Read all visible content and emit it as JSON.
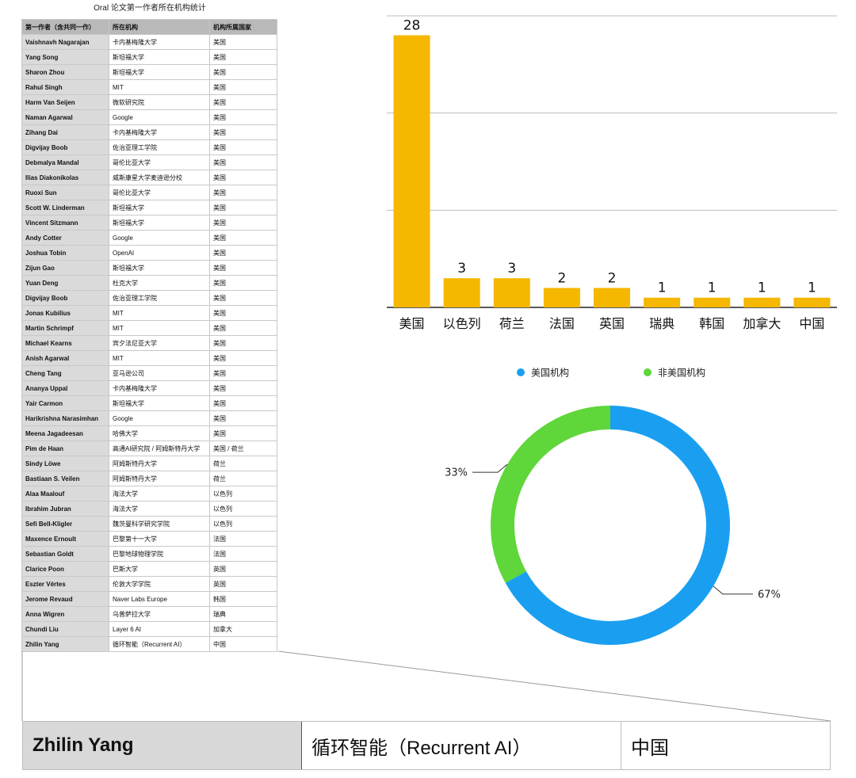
{
  "table": {
    "title": "Oral 论文第一作者所在机构统计",
    "headers": [
      "第一作者（含共同一作）",
      "所在机构",
      "机构所属国家"
    ],
    "rows": [
      [
        "Vaishnavh Nagarajan",
        "卡内基梅隆大学",
        "美国"
      ],
      [
        "Yang Song",
        "斯坦福大学",
        "美国"
      ],
      [
        "Sharon Zhou",
        "斯坦福大学",
        "美国"
      ],
      [
        "Rahul Singh",
        "MIT",
        "美国"
      ],
      [
        "Harm Van Seijen",
        "微软研究院",
        "美国"
      ],
      [
        "Naman Agarwal",
        "Google",
        "美国"
      ],
      [
        "Zihang Dai",
        "卡内基梅隆大学",
        "美国"
      ],
      [
        "Digvijay Boob",
        "佐治亚理工学院",
        "美国"
      ],
      [
        "Debmalya Mandal",
        "哥伦比亚大学",
        "美国"
      ],
      [
        "Ilias Diakonikolas",
        "威斯康星大学麦迪逊分校",
        "美国"
      ],
      [
        "Ruoxi Sun",
        "哥伦比亚大学",
        "美国"
      ],
      [
        "Scott W. Linderman",
        "斯坦福大学",
        "美国"
      ],
      [
        "Vincent Sitzmann",
        "斯坦福大学",
        "美国"
      ],
      [
        "Andy Cotter",
        "Google",
        "美国"
      ],
      [
        "Joshua Tobin",
        "OpenAI",
        "美国"
      ],
      [
        "Zijun Gao",
        "斯坦福大学",
        "美国"
      ],
      [
        "Yuan Deng",
        "杜克大学",
        "美国"
      ],
      [
        "Digvijay Boob",
        "佐治亚理工学院",
        "美国"
      ],
      [
        "Jonas Kubilius",
        "MIT",
        "美国"
      ],
      [
        "Martin Schrimpf",
        "MIT",
        "美国"
      ],
      [
        "Michael Kearns",
        "宾夕法尼亚大学",
        "美国"
      ],
      [
        "Anish Agarwal",
        "MIT",
        "美国"
      ],
      [
        "Cheng Tang",
        "亚马逊公司",
        "美国"
      ],
      [
        "Ananya Uppal",
        "卡内基梅隆大学",
        "美国"
      ],
      [
        "Yair Carmon",
        "斯坦福大学",
        "美国"
      ],
      [
        "Harikrishna Narasimhan",
        "Google",
        "美国"
      ],
      [
        "Meena Jagadeesan",
        "哈佛大学",
        "美国"
      ],
      [
        "Pim de Haan",
        "高通AI研究院 / 阿姆斯特丹大学",
        "美国 / 荷兰"
      ],
      [
        "Sindy Löwe",
        "阿姆斯特丹大学",
        "荷兰"
      ],
      [
        "Bastiaan S. Veilen",
        "阿姆斯特丹大学",
        "荷兰"
      ],
      [
        "Alaa Maalouf",
        "海法大学",
        "以色列"
      ],
      [
        "Ibrahim Jubran",
        "海法大学",
        "以色列"
      ],
      [
        "Sefi Bell-Kligler",
        "魏茨曼科学研究学院",
        "以色列"
      ],
      [
        "Maxence Ernoult",
        "巴黎第十一大学",
        "法国"
      ],
      [
        "Sebastian Goldt",
        "巴黎地球物理学院",
        "法国"
      ],
      [
        "Clarice Poon",
        "巴斯大学",
        "英国"
      ],
      [
        "Eszter Vértes",
        "伦敦大学学院",
        "英国"
      ],
      [
        "Jerome Revaud",
        "Naver Labs Europe",
        "韩国"
      ],
      [
        "Anna Wigren",
        "乌普萨拉大学",
        "瑞典"
      ],
      [
        "Chundi Liu",
        "Layer 6 AI",
        "加拿大"
      ],
      [
        "Zhilin Yang",
        "循环智能（Recurrent AI）",
        "中国"
      ]
    ]
  },
  "zoom": {
    "name": "Zhilin Yang",
    "institution": "循环智能（Recurrent AI）",
    "country": "中国"
  },
  "chart_data": [
    {
      "type": "bar",
      "categories": [
        "美国",
        "以色列",
        "荷兰",
        "法国",
        "英国",
        "瑞典",
        "韩国",
        "加拿大",
        "中国"
      ],
      "values": [
        28,
        3,
        3,
        2,
        2,
        1,
        1,
        1,
        1
      ],
      "data_labels": [
        "28",
        "3",
        "3",
        "2",
        "2",
        "1",
        "1",
        "1",
        "1"
      ],
      "ylim": [
        0,
        30
      ],
      "gridlines": [
        0,
        10,
        20,
        30
      ],
      "grid": true,
      "bar_color": "#f5b700",
      "title": "",
      "xlabel": "",
      "ylabel": ""
    },
    {
      "type": "pie",
      "donut": true,
      "labels": [
        "美国机构",
        "非美国机构"
      ],
      "values": [
        67,
        33
      ],
      "value_labels": [
        "67%",
        "33%"
      ],
      "colors": [
        "#1a9ff0",
        "#5fd63a"
      ],
      "legend": "top"
    }
  ]
}
